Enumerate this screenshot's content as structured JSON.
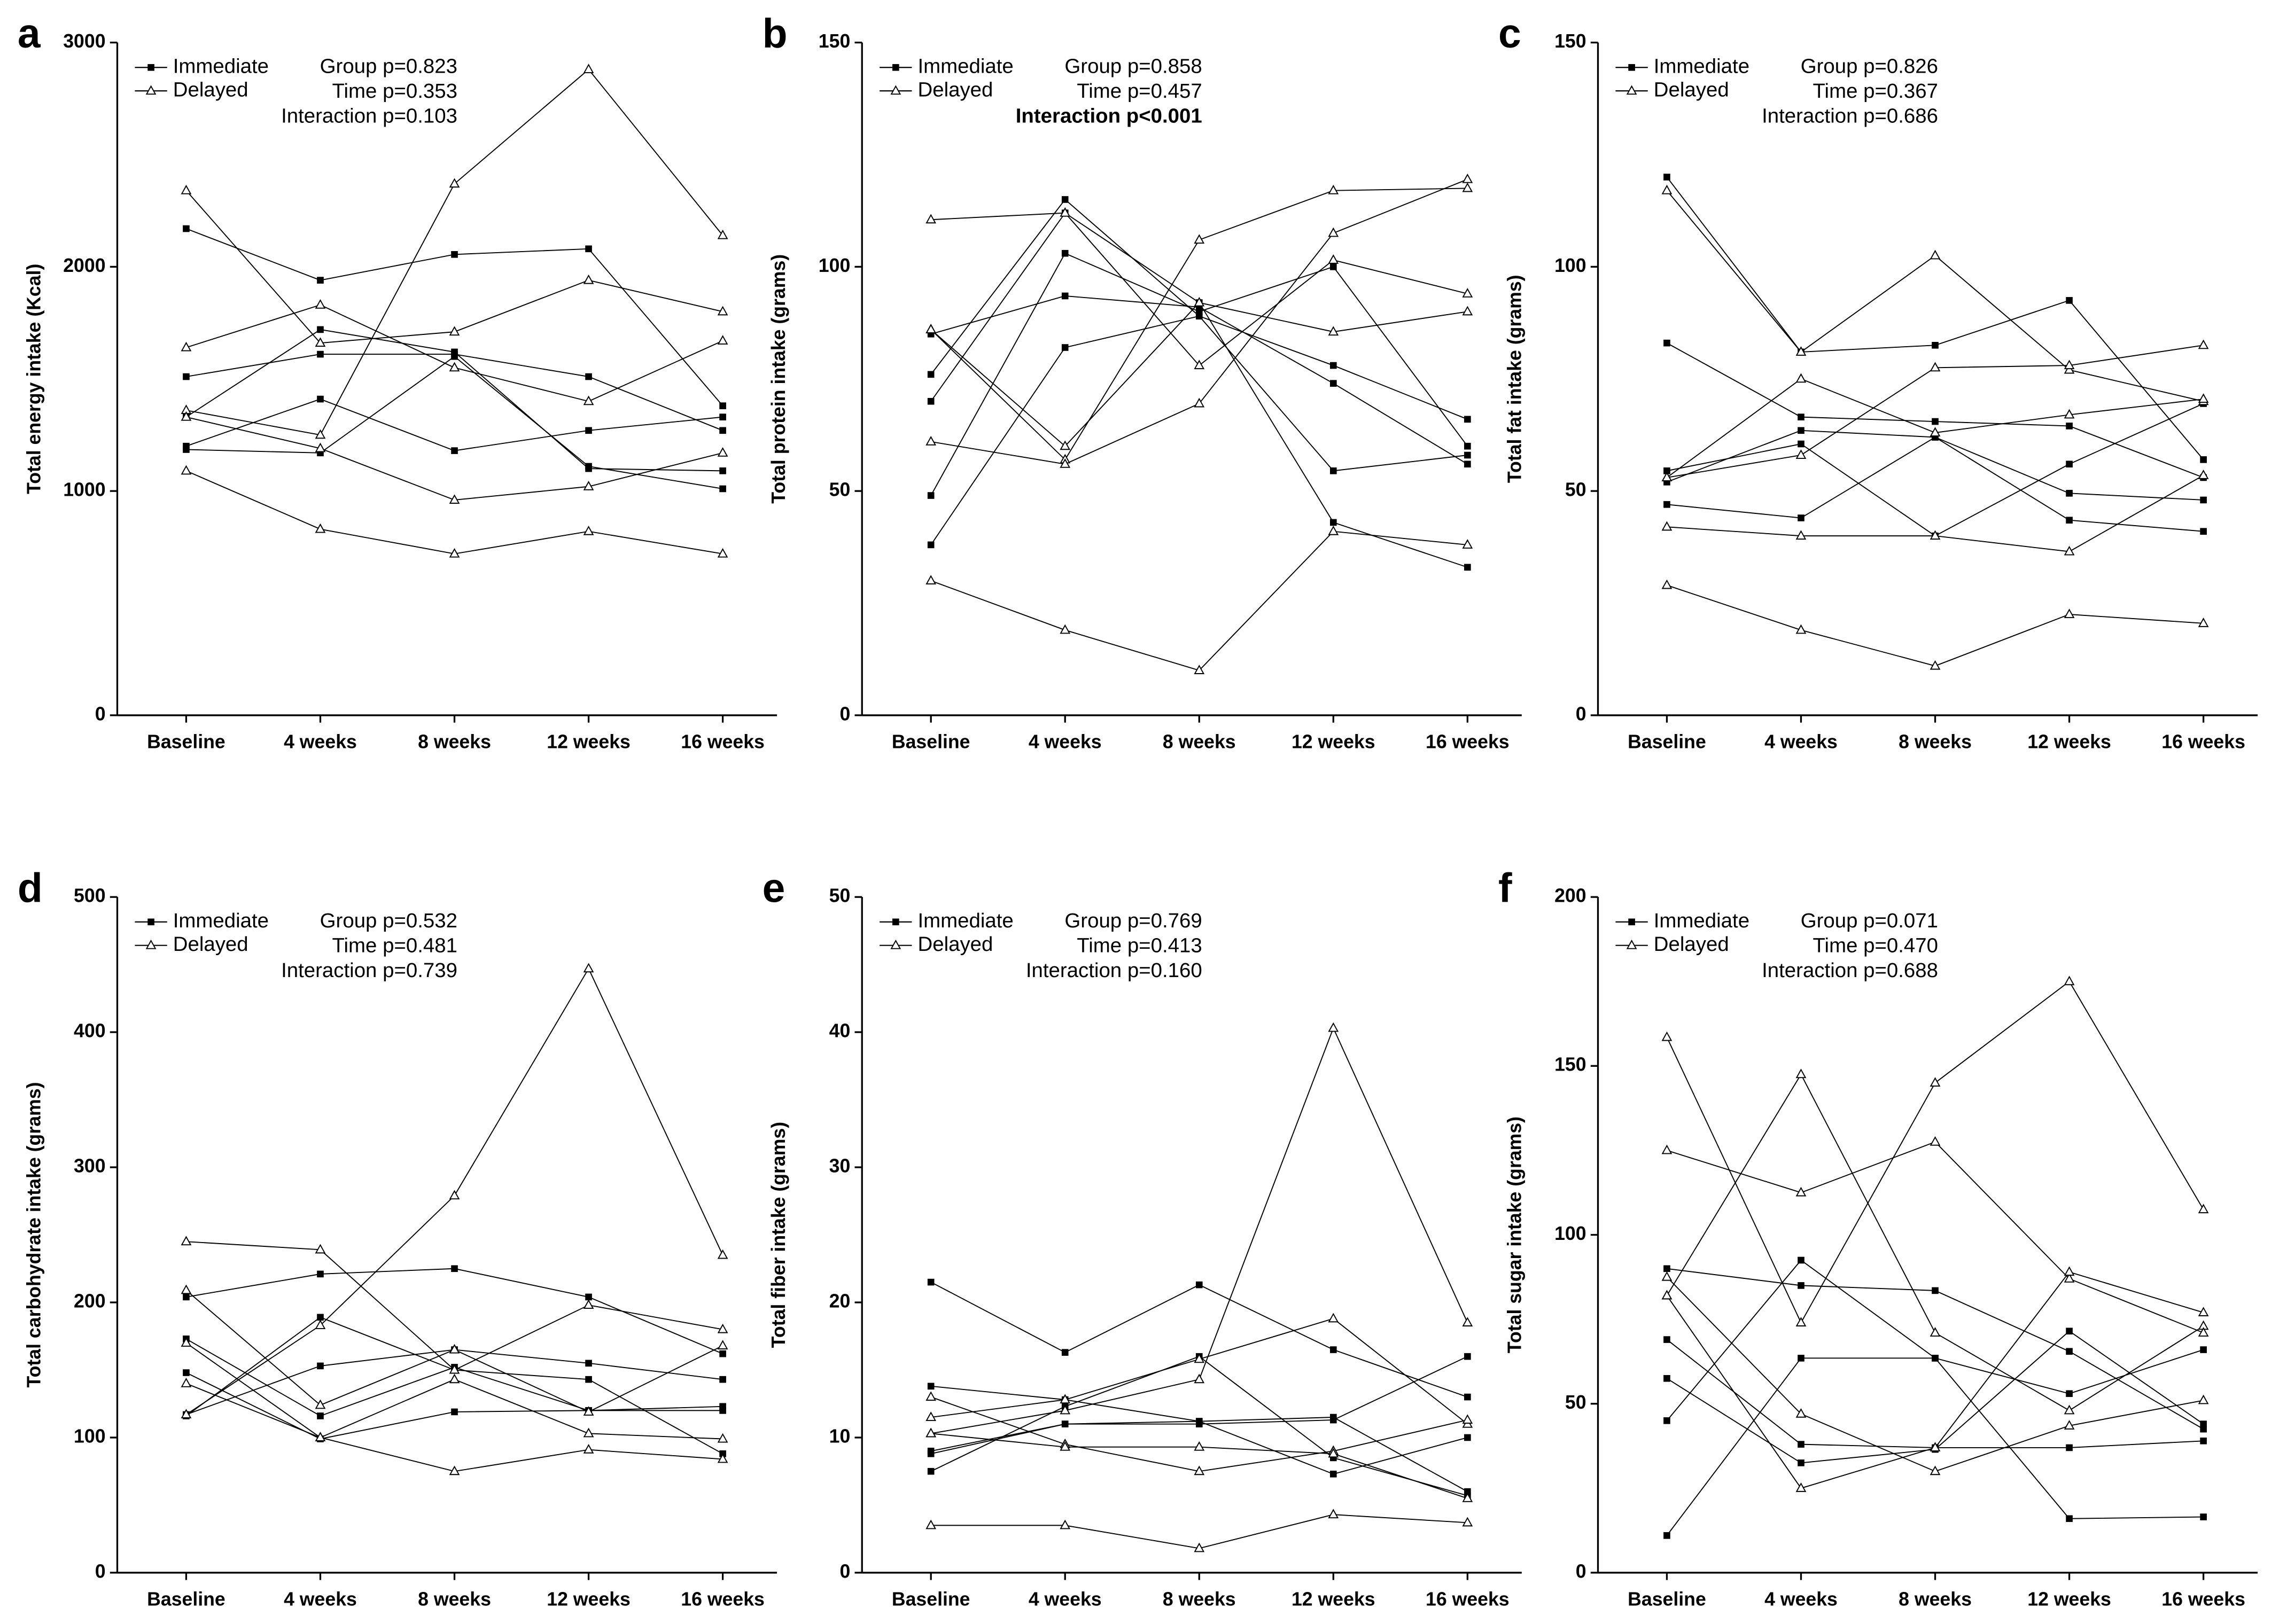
{
  "chart_data": [
    {
      "type": "line",
      "panel": "a",
      "ylabel": "Total energy intake (Kcal)",
      "categories": [
        "Baseline",
        "4 weeks",
        "8 weeks",
        "12 weeks",
        "16 weeks"
      ],
      "ylim": [
        0,
        3000
      ],
      "yticks": [
        0,
        1000,
        2000,
        3000
      ],
      "stats": [
        "Group p=0.823",
        "Time p=0.353",
        "Interaction p=0.103"
      ],
      "series": [
        {
          "name": "Immediate",
          "marker": "square",
          "lines": [
            [
              2170,
              1940,
              2055,
              2080,
              1380
            ],
            [
              1510,
              1610,
              1610,
              1510,
              1270
            ],
            [
              1330,
              1720,
              1620,
              1100,
              1090
            ],
            [
              1200,
              1410,
              1180,
              1270,
              1330
            ],
            [
              1185,
              1170,
              1600,
              1110,
              1010
            ]
          ]
        },
        {
          "name": "Delayed",
          "marker": "triangle",
          "lines": [
            [
              1360,
              1250,
              2370,
              2880,
              2140
            ],
            [
              2340,
              1660,
              1710,
              1940,
              1800
            ],
            [
              1640,
              1830,
              1550,
              1400,
              1670
            ],
            [
              1330,
              1190,
              960,
              1020,
              1170
            ],
            [
              1090,
              830,
              720,
              820,
              720
            ]
          ]
        }
      ]
    },
    {
      "type": "line",
      "panel": "b",
      "ylabel": "Total protein intake (grams)",
      "categories": [
        "Baseline",
        "4 weeks",
        "8 weeks",
        "12 weeks",
        "16 weeks"
      ],
      "ylim": [
        0,
        150
      ],
      "yticks": [
        0,
        50,
        100,
        150
      ],
      "stats": [
        "Group p=0.858",
        "Time p=0.457",
        "Interaction p<0.001"
      ],
      "bold_stat": 2,
      "series": [
        {
          "name": "Immediate",
          "marker": "square",
          "lines": [
            [
              85,
              93.5,
              91,
              74,
              56
            ],
            [
              76,
              115,
              89,
              54.5,
              58
            ],
            [
              70,
              112,
              92,
              43,
              33
            ],
            [
              49,
              103,
              90,
              100,
              60
            ],
            [
              38,
              82,
              89,
              78,
              66
            ]
          ]
        },
        {
          "name": "Delayed",
          "marker": "triangle",
          "lines": [
            [
              110.5,
              112,
              78,
              101.5,
              94
            ],
            [
              86,
              57,
              106,
              117,
              117.5
            ],
            [
              61,
              56,
              69.5,
              107.5,
              119.5
            ],
            [
              86,
              60,
              92,
              85.5,
              90
            ],
            [
              30,
              19,
              10,
              41,
              38
            ]
          ]
        }
      ]
    },
    {
      "type": "line",
      "panel": "c",
      "ylabel": "Total fat intake (grams)",
      "categories": [
        "Baseline",
        "4 weeks",
        "8 weeks",
        "12 weeks",
        "16 weeks"
      ],
      "ylim": [
        0,
        150
      ],
      "yticks": [
        0,
        50,
        100,
        150
      ],
      "stats": [
        "Group p=0.826",
        "Time p=0.367",
        "Interaction p=0.686"
      ],
      "series": [
        {
          "name": "Immediate",
          "marker": "square",
          "lines": [
            [
              120,
              81,
              82.5,
              92.5,
              57
            ],
            [
              83,
              66.5,
              65.5,
              64.5,
              53
            ],
            [
              54.5,
              60.5,
              40,
              56,
              69.5
            ],
            [
              52,
              63.5,
              62,
              43.5,
              41
            ],
            [
              47,
              44,
              62,
              49.5,
              48
            ]
          ]
        },
        {
          "name": "Delayed",
          "marker": "triangle",
          "lines": [
            [
              117,
              81,
              102.5,
              77,
              70
            ],
            [
              53,
              58,
              77.5,
              78,
              82.5
            ],
            [
              53,
              75,
              63,
              67,
              70.5
            ],
            [
              42,
              40,
              40,
              36.5,
              53.5
            ],
            [
              29,
              19,
              11,
              22.5,
              20.5
            ]
          ]
        }
      ]
    },
    {
      "type": "line",
      "panel": "d",
      "ylabel": "Total carbohydrate intake (grams)",
      "categories": [
        "Baseline",
        "4 weeks",
        "8 weeks",
        "12 weeks",
        "16 weeks"
      ],
      "ylim": [
        0,
        500
      ],
      "yticks": [
        0,
        100,
        200,
        300,
        400,
        500
      ],
      "stats": [
        "Group p=0.532",
        "Time p=0.481",
        "Interaction p=0.739"
      ],
      "series": [
        {
          "name": "Immediate",
          "marker": "square",
          "lines": [
            [
              204,
              221,
              225,
              204,
              162
            ],
            [
              173,
              116,
              152,
              120,
              120
            ],
            [
              148,
              99,
              119,
              120,
              123
            ],
            [
              117,
              153,
              165,
              155,
              143
            ],
            [
              116,
              189,
              150,
              143,
              88
            ]
          ]
        },
        {
          "name": "Delayed",
          "marker": "triangle",
          "lines": [
            [
              117,
              183,
              279,
              447,
              235
            ],
            [
              245,
              239,
              150,
              198,
              180
            ],
            [
              209,
              124,
              165,
              119,
              168
            ],
            [
              170,
              100,
              143,
              103,
              99
            ],
            [
              140,
              100,
              75,
              91,
              84
            ]
          ]
        }
      ]
    },
    {
      "type": "line",
      "panel": "e",
      "ylabel": "Total fiber intake (grams)",
      "categories": [
        "Baseline",
        "4 weeks",
        "8 weeks",
        "12 weeks",
        "16 weeks"
      ],
      "ylim": [
        0,
        50
      ],
      "yticks": [
        0,
        10,
        20,
        30,
        40,
        50
      ],
      "stats": [
        "Group p=0.769",
        "Time p=0.413",
        "Interaction p=0.160"
      ],
      "series": [
        {
          "name": "Immediate",
          "marker": "square",
          "lines": [
            [
              21.5,
              16.3,
              21.3,
              16.5,
              13
            ],
            [
              13.8,
              12.8,
              11.2,
              7.3,
              10
            ],
            [
              9,
              11,
              11,
              11.3,
              16
            ],
            [
              8.8,
              11,
              11.2,
              11.5,
              6
            ],
            [
              7.5,
              12.3,
              16,
              8.5,
              5.7
            ]
          ]
        },
        {
          "name": "Delayed",
          "marker": "triangle",
          "lines": [
            [
              10.3,
              12,
              14.3,
              40.3,
              18.5
            ],
            [
              11.5,
              12.8,
              15.8,
              18.8,
              11
            ],
            [
              13,
              9.5,
              7.5,
              9,
              11.3
            ],
            [
              10.3,
              9.3,
              9.3,
              8.8,
              5.5
            ],
            [
              3.5,
              3.5,
              1.8,
              4.3,
              3.7
            ]
          ]
        }
      ]
    },
    {
      "type": "line",
      "panel": "f",
      "ylabel": "Total sugar intake (grams)",
      "categories": [
        "Baseline",
        "4 weeks",
        "8 weeks",
        "12 weeks",
        "16 weeks"
      ],
      "ylim": [
        0,
        200
      ],
      "yticks": [
        0,
        50,
        100,
        150,
        200
      ],
      "stats": [
        "Group p=0.071",
        "Time p=0.470",
        "Interaction p=0.688"
      ],
      "series": [
        {
          "name": "Immediate",
          "marker": "square",
          "lines": [
            [
              90,
              85,
              83.5,
              65.5,
              42.5
            ],
            [
              69,
              38,
              37,
              37,
              39
            ],
            [
              57.5,
              32.5,
              36.5,
              71.5,
              44
            ],
            [
              11,
              63.5,
              63.5,
              53,
              66
            ],
            [
              45,
              92.5,
              63.5,
              16,
              16.5
            ]
          ]
        },
        {
          "name": "Delayed",
          "marker": "triangle",
          "lines": [
            [
              82,
              147.5,
              71,
              48,
              73
            ],
            [
              158.5,
              74,
              145,
              175,
              107.5
            ],
            [
              125,
              112.5,
              127.5,
              87,
              71
            ],
            [
              87.5,
              47,
              30,
              43.5,
              51
            ],
            [
              82,
              25,
              37,
              89,
              77
            ]
          ]
        }
      ]
    }
  ]
}
